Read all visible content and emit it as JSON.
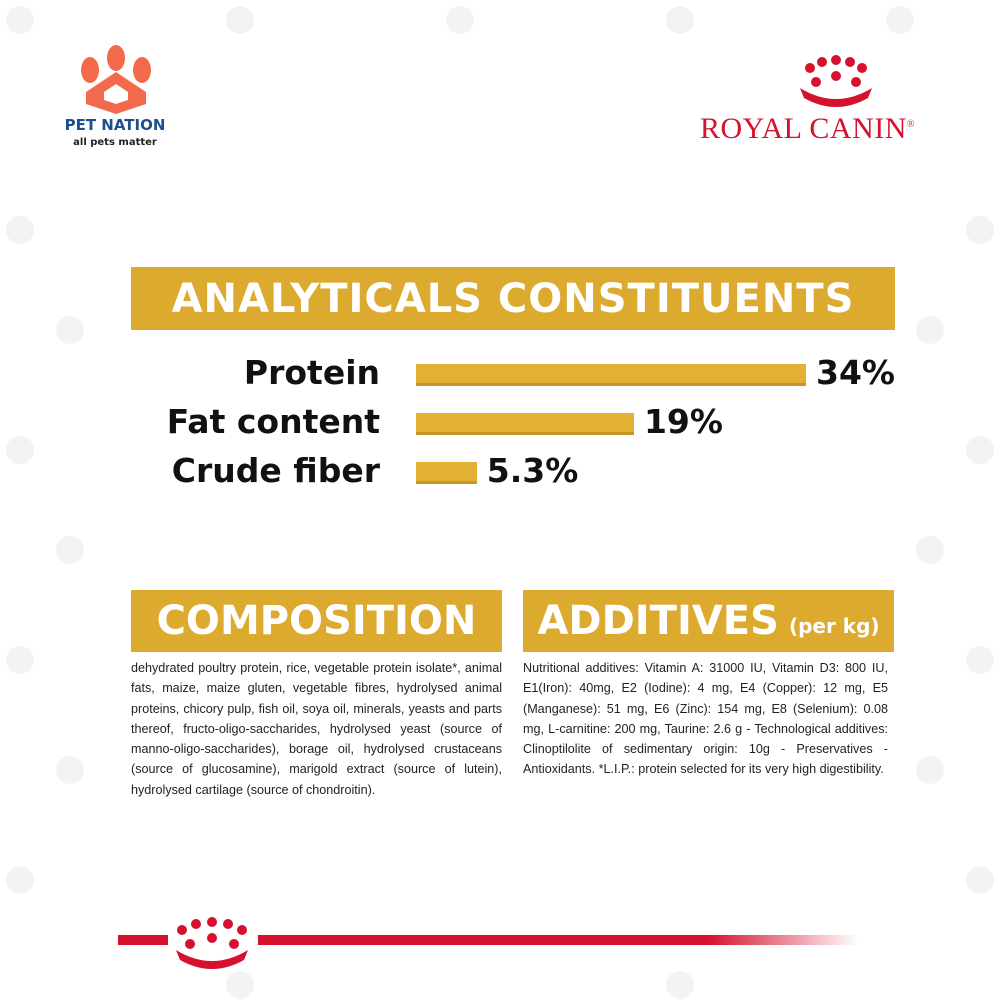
{
  "header": {
    "brand_left": "PET NATION",
    "tagline": "all pets matter",
    "brand_right": "ROYAL CANIN",
    "registered_mark": "®"
  },
  "chart_data": {
    "type": "bar",
    "orientation": "horizontal",
    "title": "ANALYTICALS CONSTITUENTS",
    "categories": [
      "Protein",
      "Fat content",
      "Crude fiber"
    ],
    "values": [
      34,
      19,
      5.3
    ],
    "value_labels": [
      "34%",
      "19%",
      "5.3%"
    ],
    "color": "#e2b032"
  },
  "composition": {
    "title": "COMPOSITION",
    "text": "dehydrated poultry protein, rice, vegetable protein isolate*, animal fats, maize, maize gluten, vegetable fibres, hydrolysed animal proteins, chicory pulp, fish oil, soya oil, minerals, yeasts and parts thereof, fructo-oligo-saccharides, hydrolysed yeast (source of manno-oligo-saccharides), borage oil, hydrolysed crustaceans (source of glucosamine), marigold extract (source of lutein), hydrolysed cartilage (source of chondroitin)."
  },
  "additives": {
    "title": "ADDITIVES",
    "unit": "(per kg)",
    "text": "Nutritional additives: Vitamin A: 31000 IU, Vitamin D3: 800 IU, E1(Iron): 40mg, E2 (Iodine): 4 mg, E4 (Copper): 12 mg, E5 (Manganese): 51 mg, E6 (Zinc): 154 mg, E8 (Selenium): 0.08 mg, L-carnitine: 200 mg, Taurine: 2.6 g - Technological additives: Clinoptilolite of sedimentary origin: 10g - Preservatives - Antioxidants. *L.I.P.: protein selected for its very high digestibility."
  }
}
